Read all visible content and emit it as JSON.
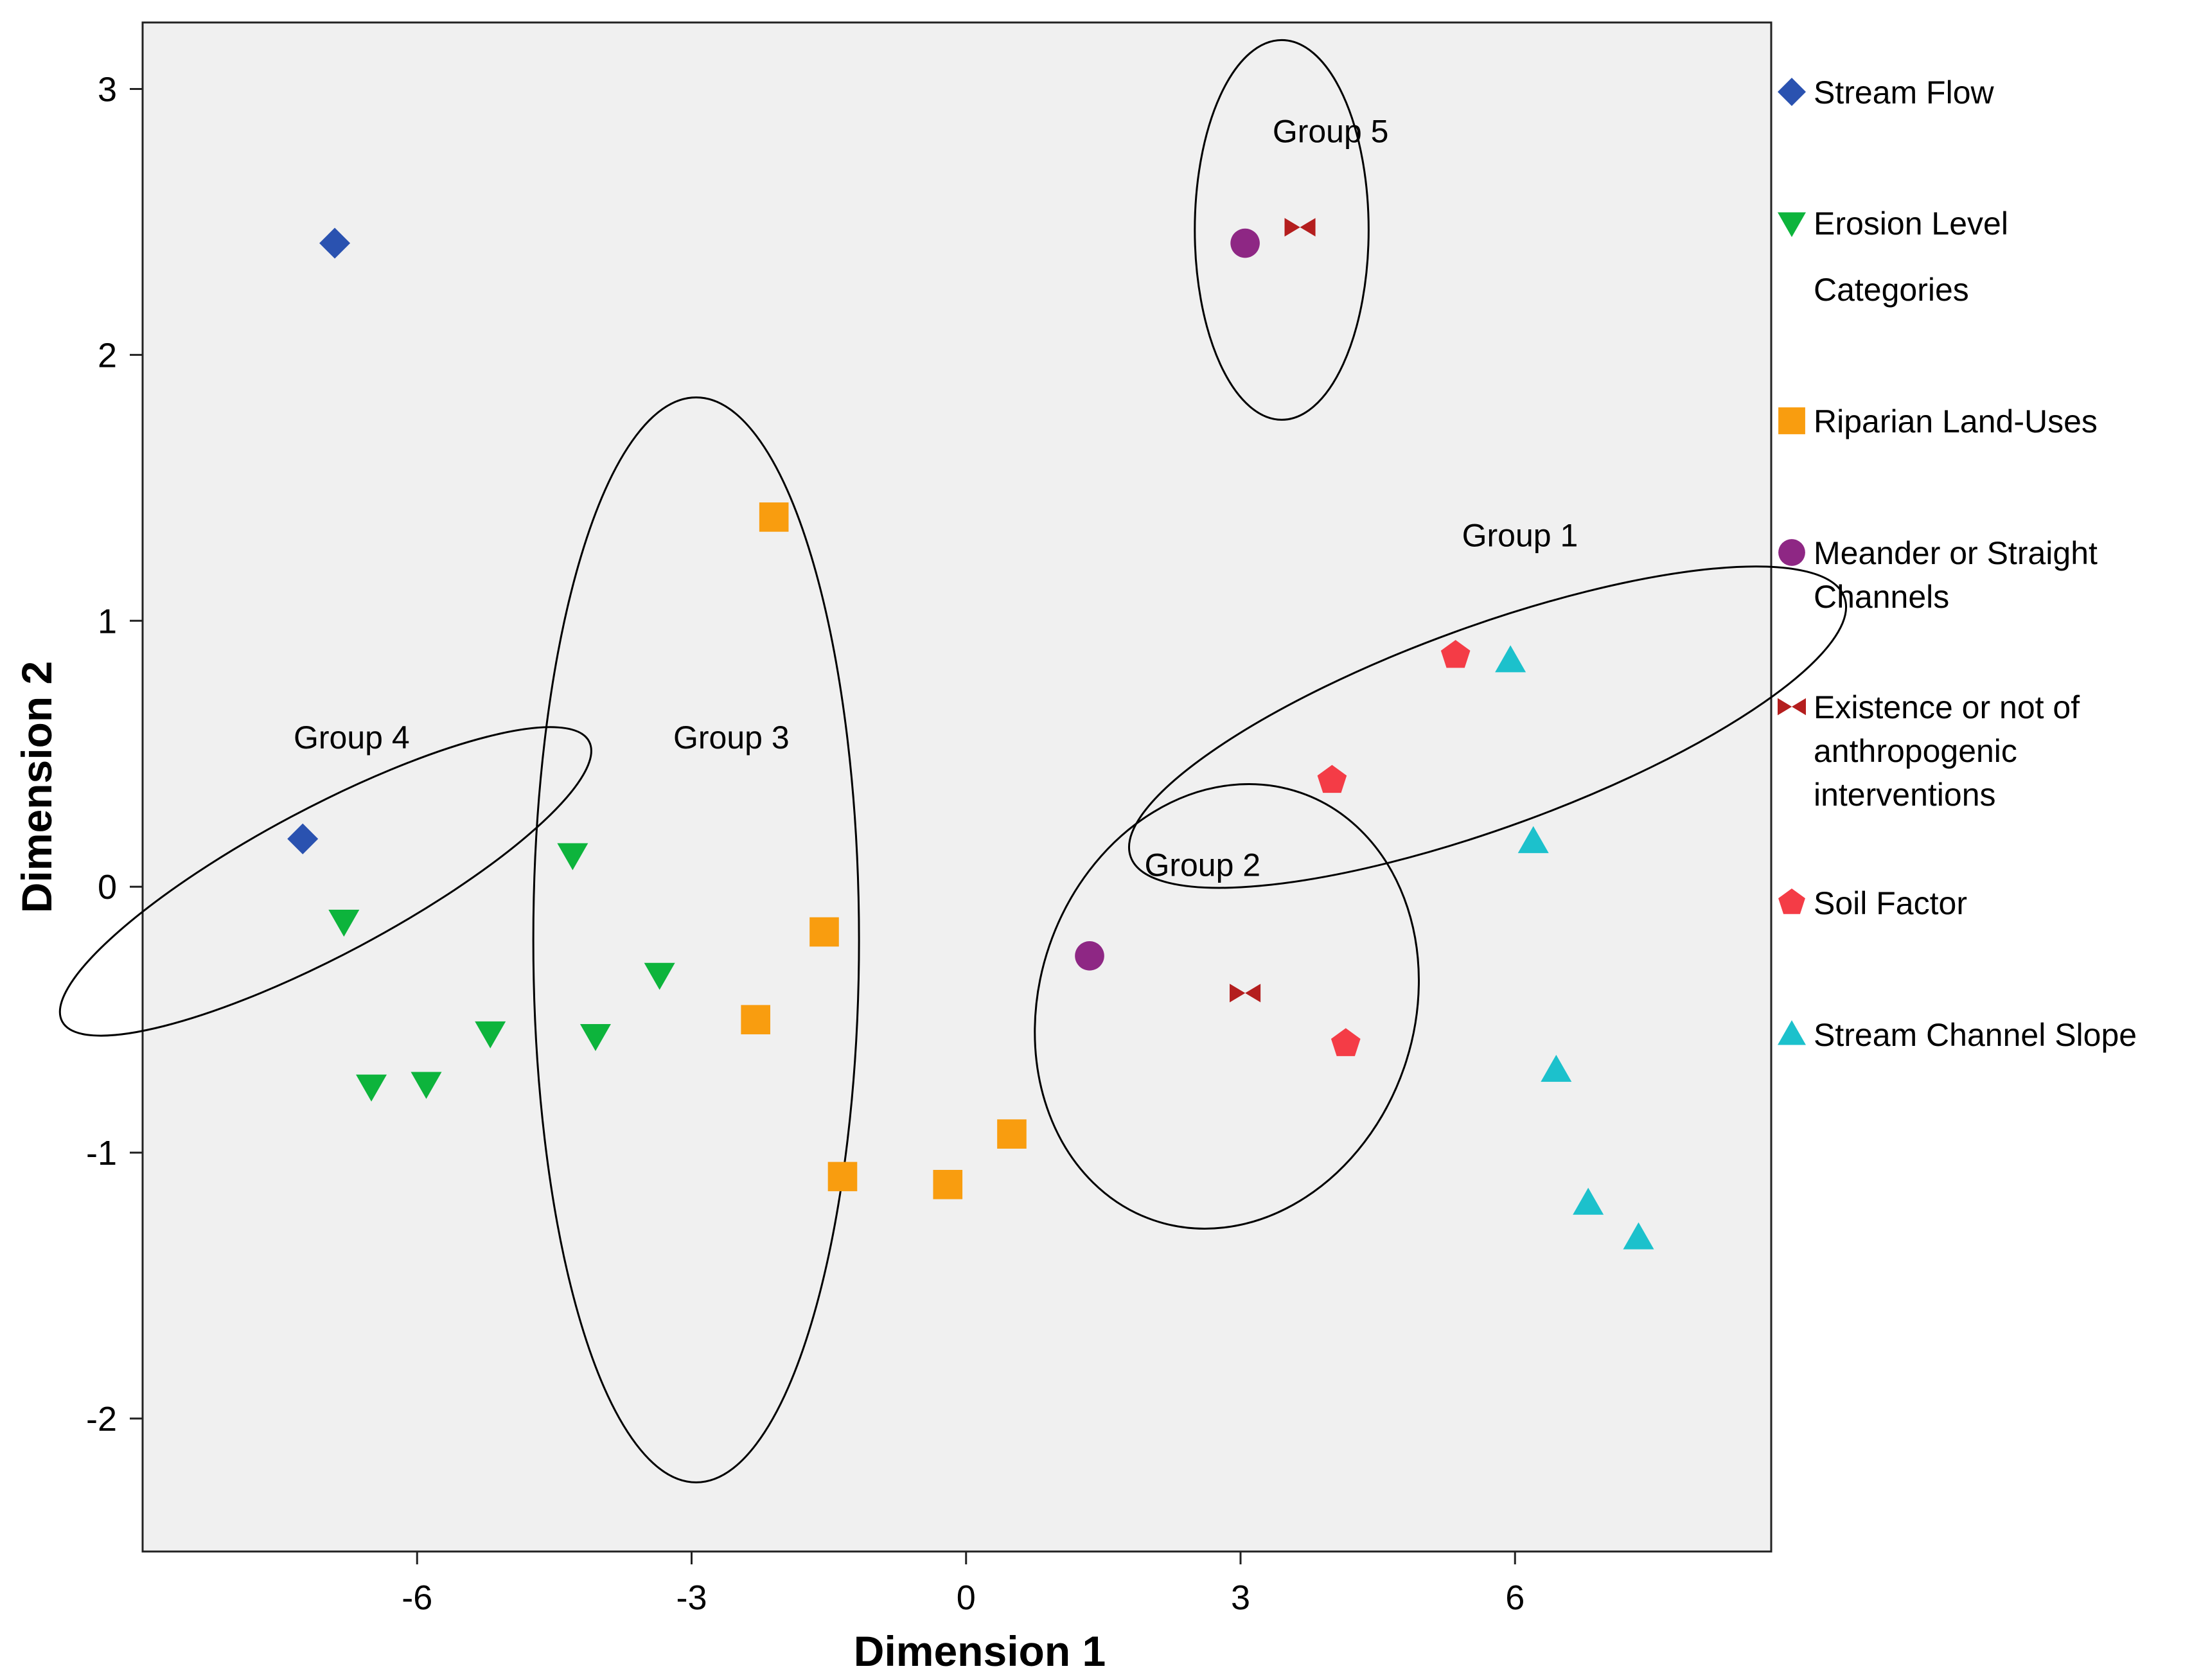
{
  "chart_data": {
    "type": "scatter",
    "xlabel": "Dimension 1",
    "ylabel": "Dimension 2",
    "xlim": [
      -9,
      8.8
    ],
    "ylim": [
      -2.5,
      3.25
    ],
    "xticks": [
      {
        "value": -6,
        "label": "-6"
      },
      {
        "value": -3,
        "label": "-3"
      },
      {
        "value": 0,
        "label": "0"
      },
      {
        "value": 3,
        "label": "3"
      },
      {
        "value": 6,
        "label": "6"
      }
    ],
    "yticks": [
      {
        "value": 3,
        "label": "3"
      },
      {
        "value": 2,
        "label": "2"
      },
      {
        "value": 1,
        "label": "1"
      },
      {
        "value": 0,
        "label": "0"
      },
      {
        "value": -1,
        "label": "-1"
      },
      {
        "value": -2,
        "label": "-2"
      }
    ],
    "grid": false,
    "legend_position": "right",
    "series": [
      {
        "name": "Stream Flow",
        "marker": "diamond",
        "color": "#2a52b0",
        "points": [
          {
            "x": -6.9,
            "y": 2.42
          },
          {
            "x": -7.25,
            "y": 0.18
          }
        ]
      },
      {
        "name": "Erosion Level Categories",
        "marker": "triangle-down",
        "color": "#0db43c",
        "legend_lines": [
          "Erosion Level",
          "Categories"
        ],
        "points": [
          {
            "x": -6.8,
            "y": -0.13
          },
          {
            "x": -6.5,
            "y": -0.75
          },
          {
            "x": -5.9,
            "y": -0.74
          },
          {
            "x": -5.2,
            "y": -0.55
          },
          {
            "x": -4.3,
            "y": 0.12
          },
          {
            "x": -4.05,
            "y": -0.56
          },
          {
            "x": -3.35,
            "y": -0.33
          }
        ]
      },
      {
        "name": "Riparian Land-Uses",
        "marker": "square",
        "color": "#f99d0f",
        "points": [
          {
            "x": -2.1,
            "y": 1.39
          },
          {
            "x": -1.55,
            "y": -0.17
          },
          {
            "x": -2.3,
            "y": -0.5
          },
          {
            "x": -1.35,
            "y": -1.09
          },
          {
            "x": -0.2,
            "y": -1.12
          },
          {
            "x": 0.5,
            "y": -0.93
          }
        ]
      },
      {
        "name": "Meander or Straight Channels",
        "marker": "circle",
        "color": "#8e2784",
        "legend_lines": [
          "Meander or Straight",
          "Channels"
        ],
        "points": [
          {
            "x": 3.05,
            "y": 2.42
          },
          {
            "x": 1.35,
            "y": -0.26
          }
        ]
      },
      {
        "name": "Existence or not of anthropogenic interventions",
        "marker": "bowtie",
        "color": "#b41e1e",
        "legend_lines": [
          "Existence or not of",
          "anthropogenic",
          "interventions"
        ],
        "points": [
          {
            "x": 3.65,
            "y": 2.48
          },
          {
            "x": 3.05,
            "y": -0.4
          }
        ]
      },
      {
        "name": "Soil Factor",
        "marker": "pentagon",
        "color": "#f43c46",
        "points": [
          {
            "x": 5.35,
            "y": 0.87
          },
          {
            "x": 4.0,
            "y": 0.4
          },
          {
            "x": 4.15,
            "y": -0.59
          }
        ]
      },
      {
        "name": "Stream Channel Slope",
        "marker": "triangle-up",
        "color": "#1cc1cc",
        "points": [
          {
            "x": 5.95,
            "y": 0.85
          },
          {
            "x": 6.2,
            "y": 0.17
          },
          {
            "x": 6.45,
            "y": -0.69
          },
          {
            "x": 6.8,
            "y": -1.19
          },
          {
            "x": 7.35,
            "y": -1.32
          }
        ]
      }
    ],
    "annotations": [
      {
        "text": "Group 5",
        "x": 3.35,
        "y": 2.8,
        "ellipse": {
          "cx": 3.45,
          "cy": 2.47,
          "rx": 0.95,
          "ry": 0.21,
          "angle": 0
        }
      },
      {
        "text": "Group 1",
        "x": 5.42,
        "y": 1.28,
        "ellipse": {
          "cx": 5.7,
          "cy": 0.6,
          "rx": 1.1,
          "ry": 0.42,
          "angle": 70
        }
      },
      {
        "text": "Group 2",
        "x": 1.95,
        "y": 0.04,
        "ellipse": {
          "cx": 2.85,
          "cy": -0.45,
          "rx": 2.05,
          "ry": 0.25,
          "angle": 19
        }
      },
      {
        "text": "Group 3",
        "x": -3.2,
        "y": 0.52,
        "ellipse": {
          "cx": -2.95,
          "cy": -0.2,
          "rx": 1.78,
          "ry": 0.6,
          "angle": 0
        }
      },
      {
        "text": "Group 4",
        "x": -7.35,
        "y": 0.52,
        "ellipse": {
          "cx": -7.0,
          "cy": 0.02,
          "rx": 0.8,
          "ry": 0.33,
          "angle": 62
        }
      }
    ]
  }
}
